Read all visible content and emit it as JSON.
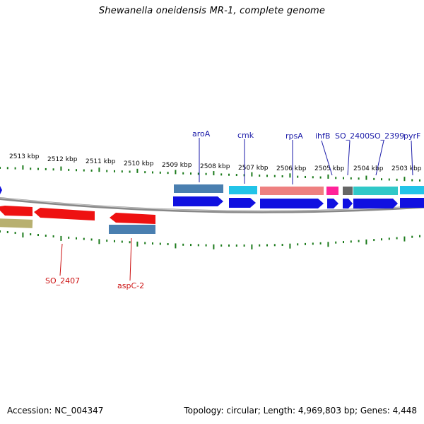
{
  "title": "Shewanella oneidensis MR-1, complete genome",
  "footer": {
    "accession": "Accession: NC_004347",
    "topology": "Topology: circular; Length: 4,969,803 bp; Genes: 4,448"
  },
  "colors": {
    "forward_gene": "#1010e0",
    "reverse_gene": "#ee1111",
    "steelblue_feature": "#4a7fb0",
    "cyan_feature": "#22c4e8",
    "salmon_feature": "#ee8080",
    "magenta_feature": "#ff2299",
    "grey_feature": "#666666",
    "teal_feature": "#30c8c8",
    "olive_feature": "#b8b070",
    "tick": "#1a7a1a",
    "backbone": "#888888"
  },
  "scale_labels": [
    "2513 kbp",
    "2512 kbp",
    "2511 kbp",
    "2510 kbp",
    "2509 kbp",
    "2508 kbp",
    "2507 kbp",
    "2506 kbp",
    "2505 kbp",
    "2504 kbp",
    "2503 kbp"
  ],
  "forward_labels": [
    "aroA",
    "cmk",
    "rpsA",
    "ihfB",
    "SO_2400",
    "SO_2399",
    "pyrF"
  ],
  "reverse_labels": [
    "SO_2407",
    "aspC-2"
  ]
}
